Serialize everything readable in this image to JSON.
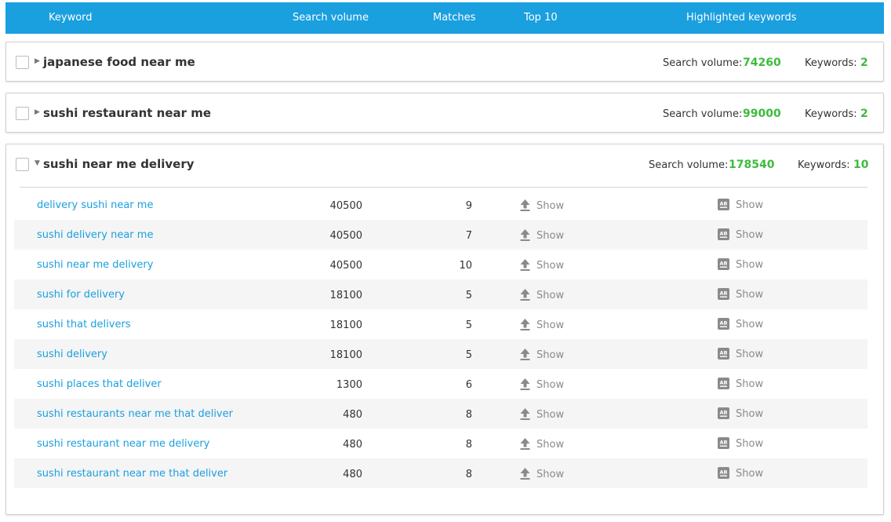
{
  "header": {
    "keyword": "Keyword",
    "search_volume": "Search volume",
    "matches": "Matches",
    "top10": "Top 10",
    "highlighted": "Highlighted keywords"
  },
  "stat_labels": {
    "search_volume": "Search volume:",
    "keywords": "Keywords:"
  },
  "groups": [
    {
      "title": "japanese food near me",
      "search_volume": "74260",
      "keywords": "2",
      "expanded": false
    },
    {
      "title": "sushi restaurant near me",
      "search_volume": "99000",
      "keywords": "2",
      "expanded": false
    },
    {
      "title": "sushi near me delivery",
      "search_volume": "178540",
      "keywords": "10",
      "expanded": true
    }
  ],
  "show_label": "Show",
  "rows": [
    {
      "keyword": "delivery sushi near me",
      "volume": "40500",
      "matches": "9"
    },
    {
      "keyword": "sushi delivery near me",
      "volume": "40500",
      "matches": "7"
    },
    {
      "keyword": "sushi near me delivery",
      "volume": "40500",
      "matches": "10"
    },
    {
      "keyword": "sushi for delivery",
      "volume": "18100",
      "matches": "5"
    },
    {
      "keyword": "sushi that delivers",
      "volume": "18100",
      "matches": "5"
    },
    {
      "keyword": "sushi delivery",
      "volume": "18100",
      "matches": "5"
    },
    {
      "keyword": "sushi places that deliver",
      "volume": "1300",
      "matches": "6"
    },
    {
      "keyword": "sushi restaurants near me that deliver",
      "volume": "480",
      "matches": "8"
    },
    {
      "keyword": "sushi restaurant near me delivery",
      "volume": "480",
      "matches": "8"
    },
    {
      "keyword": "sushi restaurant near me that deliver",
      "volume": "480",
      "matches": "8"
    }
  ],
  "colors": {
    "header_bg": "#1a9fdf",
    "link": "#1a9fdf",
    "stat_value": "#3dbb3d",
    "muted": "#8a8a8a"
  },
  "icons": {
    "top10": "upload-arrow-icon",
    "highlighted": "ab-box-icon",
    "collapsed": "caret-right-icon",
    "expanded": "caret-down-icon"
  }
}
